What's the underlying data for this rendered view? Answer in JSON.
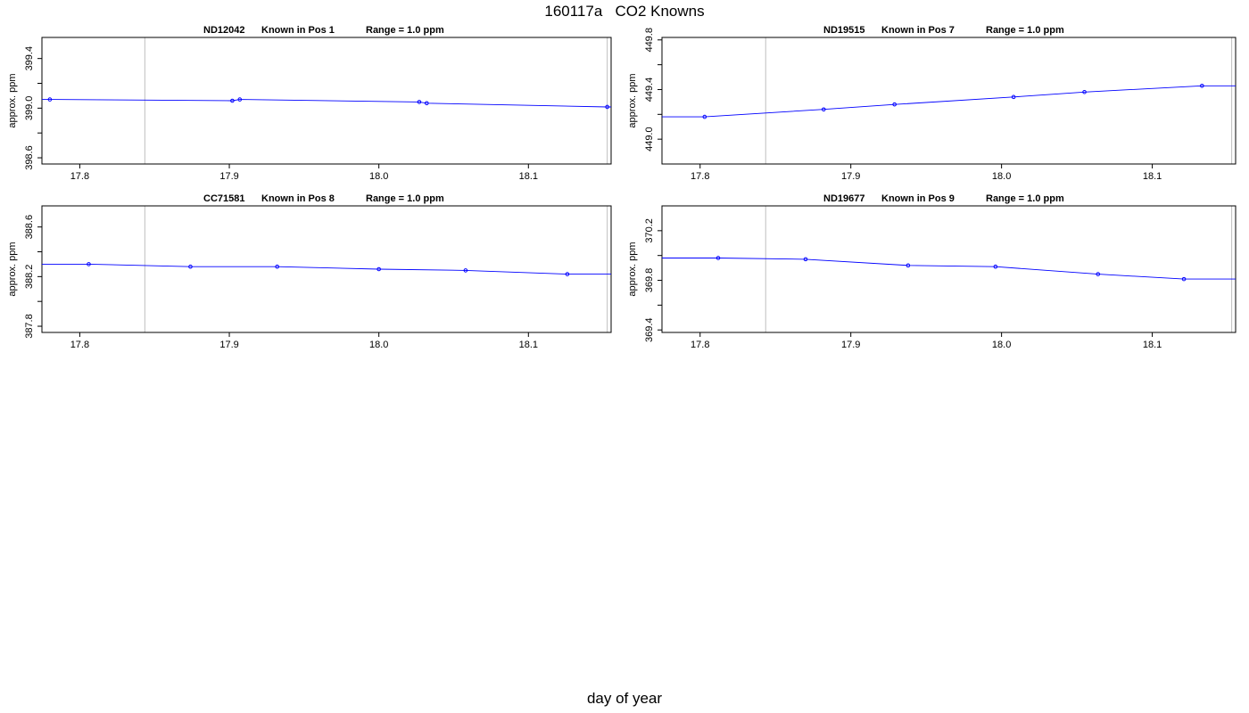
{
  "main_title": "160117a   CO2 Knowns",
  "x_label": "day of year",
  "colors": {
    "series": "#0000ff",
    "vline": "#bebebe",
    "axis": "#000000"
  },
  "chart_data": [
    {
      "type": "line",
      "title_parts": [
        "ND12042",
        "Known in Pos 1",
        "Range = 1.0 ppm"
      ],
      "ylabel": "approx. ppm",
      "xlim": [
        17.7747,
        18.1553
      ],
      "ylim": [
        398.55,
        399.57
      ],
      "x_ticks": [
        17.8,
        17.9,
        18.0,
        18.1
      ],
      "x_tick_labels": [
        "17.8",
        "17.9",
        "18.0",
        "18.1"
      ],
      "y_ticks": [
        398.6,
        399.0,
        399.4
      ],
      "y_tick_labels": [
        "398.6",
        "399.0",
        "399.4"
      ],
      "y_minor_ticks": [
        398.6,
        398.8,
        399.0,
        399.2,
        399.4
      ],
      "vlines": [
        17.8435,
        18.1527
      ],
      "line": {
        "x": [
          17.7747,
          17.78,
          17.902,
          17.907,
          18.027,
          18.032,
          18.1527,
          18.1553
        ],
        "y": [
          399.07,
          399.07,
          399.06,
          399.07,
          399.05,
          399.04,
          399.01,
          399.01
        ]
      },
      "points": {
        "x": [
          17.78,
          17.902,
          17.907,
          18.027,
          18.032,
          18.1527
        ],
        "y": [
          399.07,
          399.06,
          399.07,
          399.05,
          399.04,
          399.01
        ]
      }
    },
    {
      "type": "line",
      "title_parts": [
        "ND19515",
        "Known in Pos 7",
        "Range = 1.0 ppm"
      ],
      "ylabel": "approx. ppm",
      "xlim": [
        17.7747,
        18.1553
      ],
      "ylim": [
        448.8,
        449.82
      ],
      "x_ticks": [
        17.8,
        17.9,
        18.0,
        18.1
      ],
      "x_tick_labels": [
        "17.8",
        "17.9",
        "18.0",
        "18.1"
      ],
      "y_ticks": [
        449.0,
        449.4,
        449.8
      ],
      "y_tick_labels": [
        "449.0",
        "449.4",
        "449.8"
      ],
      "y_minor_ticks": [
        449.0,
        449.2,
        449.4,
        449.6,
        449.8
      ],
      "vlines": [
        17.8435,
        18.1527
      ],
      "line": {
        "x": [
          17.7747,
          17.803,
          17.882,
          17.929,
          18.008,
          18.055,
          18.133,
          18.1553
        ],
        "y": [
          449.18,
          449.18,
          449.24,
          449.28,
          449.34,
          449.38,
          449.43,
          449.43
        ]
      },
      "points": {
        "x": [
          17.803,
          17.882,
          17.929,
          18.008,
          18.055,
          18.133
        ],
        "y": [
          449.18,
          449.24,
          449.28,
          449.34,
          449.38,
          449.43
        ]
      }
    },
    {
      "type": "line",
      "title_parts": [
        "CC71581",
        "Known in Pos 8",
        "Range = 1.0 ppm"
      ],
      "ylabel": "approx. ppm",
      "xlim": [
        17.7747,
        18.1553
      ],
      "ylim": [
        387.75,
        388.77
      ],
      "x_ticks": [
        17.8,
        17.9,
        18.0,
        18.1
      ],
      "x_tick_labels": [
        "17.8",
        "17.9",
        "18.0",
        "18.1"
      ],
      "y_ticks": [
        387.8,
        388.2,
        388.6
      ],
      "y_tick_labels": [
        "387.8",
        "388.2",
        "388.6"
      ],
      "y_minor_ticks": [
        387.8,
        388.0,
        388.2,
        388.4,
        388.6
      ],
      "vlines": [
        17.8435,
        18.1527
      ],
      "line": {
        "x": [
          17.7747,
          17.806,
          17.874,
          17.932,
          18.0,
          18.058,
          18.126,
          18.1553
        ],
        "y": [
          388.3,
          388.3,
          388.28,
          388.28,
          388.26,
          388.25,
          388.22,
          388.22
        ]
      },
      "points": {
        "x": [
          17.806,
          17.874,
          17.932,
          18.0,
          18.058,
          18.126
        ],
        "y": [
          388.3,
          388.28,
          388.28,
          388.26,
          388.25,
          388.22
        ]
      }
    },
    {
      "type": "line",
      "title_parts": [
        "ND19677",
        "Known in Pos 9",
        "Range = 1.0 ppm"
      ],
      "ylabel": "approx. ppm",
      "xlim": [
        17.7747,
        18.1553
      ],
      "ylim": [
        369.38,
        370.4
      ],
      "x_ticks": [
        17.8,
        17.9,
        18.0,
        18.1
      ],
      "x_tick_labels": [
        "17.8",
        "17.9",
        "18.0",
        "18.1"
      ],
      "y_ticks": [
        369.4,
        369.8,
        370.2
      ],
      "y_tick_labels": [
        "369.4",
        "369.8",
        "370.2"
      ],
      "y_minor_ticks": [
        369.4,
        369.6,
        369.8,
        370.0,
        370.2
      ],
      "vlines": [
        17.8435,
        18.1527
      ],
      "line": {
        "x": [
          17.7747,
          17.812,
          17.87,
          17.938,
          17.996,
          18.064,
          18.121,
          18.1553
        ],
        "y": [
          369.98,
          369.98,
          369.97,
          369.92,
          369.91,
          369.85,
          369.81,
          369.81
        ]
      },
      "points": {
        "x": [
          17.812,
          17.87,
          17.938,
          17.996,
          18.064,
          18.121
        ],
        "y": [
          369.98,
          369.97,
          369.92,
          369.91,
          369.85,
          369.81
        ]
      }
    }
  ]
}
